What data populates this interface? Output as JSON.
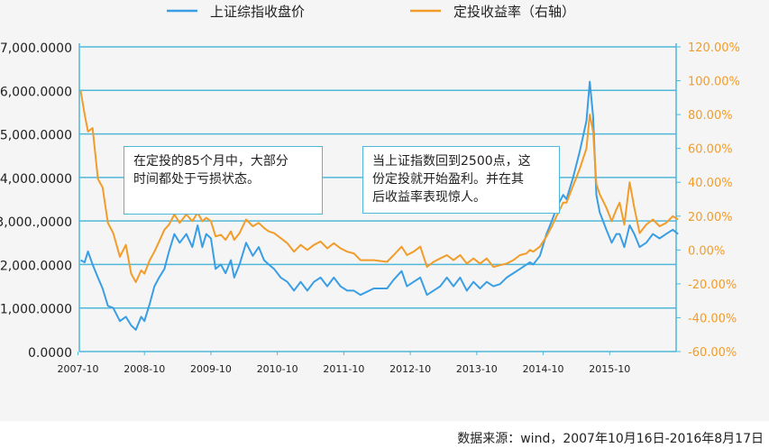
{
  "chart_data": {
    "type": "line",
    "series": [
      {
        "name": "上证综指收盘价",
        "color": "#3a9ee4",
        "axis": "left",
        "points": [
          [
            2007.79,
            2100
          ],
          [
            2007.85,
            2050
          ],
          [
            2007.9,
            2300
          ],
          [
            2007.97,
            2000
          ],
          [
            2008.05,
            1700
          ],
          [
            2008.12,
            1450
          ],
          [
            2008.2,
            1050
          ],
          [
            2008.28,
            1000
          ],
          [
            2008.38,
            700
          ],
          [
            2008.47,
            800
          ],
          [
            2008.55,
            600
          ],
          [
            2008.62,
            500
          ],
          [
            2008.7,
            800
          ],
          [
            2008.75,
            700
          ],
          [
            2008.83,
            1100
          ],
          [
            2008.9,
            1500
          ],
          [
            2008.97,
            1700
          ],
          [
            2009.05,
            1900
          ],
          [
            2009.12,
            2300
          ],
          [
            2009.2,
            2700
          ],
          [
            2009.28,
            2500
          ],
          [
            2009.38,
            2700
          ],
          [
            2009.47,
            2400
          ],
          [
            2009.55,
            2900
          ],
          [
            2009.62,
            2400
          ],
          [
            2009.68,
            2700
          ],
          [
            2009.75,
            2600
          ],
          [
            2009.82,
            1900
          ],
          [
            2009.9,
            2000
          ],
          [
            2009.97,
            1800
          ],
          [
            2010.05,
            2100
          ],
          [
            2010.1,
            1700
          ],
          [
            2010.18,
            2000
          ],
          [
            2010.28,
            2500
          ],
          [
            2010.38,
            2200
          ],
          [
            2010.47,
            2400
          ],
          [
            2010.55,
            2100
          ],
          [
            2010.62,
            2000
          ],
          [
            2010.7,
            1900
          ],
          [
            2010.8,
            1700
          ],
          [
            2010.9,
            1600
          ],
          [
            2011.0,
            1400
          ],
          [
            2011.1,
            1600
          ],
          [
            2011.2,
            1400
          ],
          [
            2011.3,
            1600
          ],
          [
            2011.4,
            1700
          ],
          [
            2011.5,
            1500
          ],
          [
            2011.6,
            1700
          ],
          [
            2011.7,
            1500
          ],
          [
            2011.8,
            1400
          ],
          [
            2011.9,
            1400
          ],
          [
            2012.0,
            1300
          ],
          [
            2012.2,
            1450
          ],
          [
            2012.4,
            1450
          ],
          [
            2012.5,
            1650
          ],
          [
            2012.62,
            1850
          ],
          [
            2012.7,
            1500
          ],
          [
            2012.8,
            1600
          ],
          [
            2012.9,
            1700
          ],
          [
            2013.0,
            1300
          ],
          [
            2013.1,
            1400
          ],
          [
            2013.2,
            1500
          ],
          [
            2013.3,
            1700
          ],
          [
            2013.4,
            1500
          ],
          [
            2013.5,
            1700
          ],
          [
            2013.6,
            1400
          ],
          [
            2013.7,
            1600
          ],
          [
            2013.8,
            1450
          ],
          [
            2013.9,
            1600
          ],
          [
            2014.0,
            1500
          ],
          [
            2014.1,
            1550
          ],
          [
            2014.2,
            1700
          ],
          [
            2014.3,
            1800
          ],
          [
            2014.4,
            1900
          ],
          [
            2014.5,
            2000
          ],
          [
            2014.55,
            2050
          ],
          [
            2014.6,
            2000
          ],
          [
            2014.7,
            2200
          ],
          [
            2014.8,
            2700
          ],
          [
            2014.88,
            3000
          ],
          [
            2014.95,
            3300
          ],
          [
            2015.05,
            3600
          ],
          [
            2015.1,
            3500
          ],
          [
            2015.2,
            4000
          ],
          [
            2015.3,
            4600
          ],
          [
            2015.4,
            5300
          ],
          [
            2015.45,
            6200
          ],
          [
            2015.5,
            5400
          ],
          [
            2015.55,
            3600
          ],
          [
            2015.6,
            3200
          ],
          [
            2015.65,
            3000
          ],
          [
            2015.7,
            2800
          ],
          [
            2015.78,
            2500
          ],
          [
            2015.85,
            2700
          ],
          [
            2015.9,
            2700
          ],
          [
            2015.97,
            2400
          ],
          [
            2016.05,
            2900
          ],
          [
            2016.12,
            2700
          ],
          [
            2016.2,
            2400
          ],
          [
            2016.3,
            2500
          ],
          [
            2016.4,
            2700
          ],
          [
            2016.5,
            2600
          ],
          [
            2016.6,
            2700
          ],
          [
            2016.7,
            2800
          ],
          [
            2016.78,
            2700
          ]
        ]
      },
      {
        "name": "定投收益率（右轴）",
        "color": "#f29c2a",
        "axis": "right",
        "points": [
          [
            2007.79,
            94
          ],
          [
            2007.85,
            80
          ],
          [
            2007.9,
            70
          ],
          [
            2007.97,
            72
          ],
          [
            2008.05,
            42
          ],
          [
            2008.12,
            37
          ],
          [
            2008.2,
            16
          ],
          [
            2008.28,
            10
          ],
          [
            2008.38,
            -4
          ],
          [
            2008.47,
            3
          ],
          [
            2008.55,
            -14
          ],
          [
            2008.62,
            -19
          ],
          [
            2008.7,
            -12
          ],
          [
            2008.75,
            -14
          ],
          [
            2008.83,
            -6
          ],
          [
            2008.9,
            -1
          ],
          [
            2008.97,
            5
          ],
          [
            2009.05,
            12
          ],
          [
            2009.12,
            15
          ],
          [
            2009.2,
            21
          ],
          [
            2009.28,
            16
          ],
          [
            2009.38,
            21
          ],
          [
            2009.47,
            17
          ],
          [
            2009.55,
            22
          ],
          [
            2009.62,
            17
          ],
          [
            2009.68,
            19
          ],
          [
            2009.75,
            17
          ],
          [
            2009.82,
            8
          ],
          [
            2009.9,
            9
          ],
          [
            2009.97,
            6
          ],
          [
            2010.05,
            11
          ],
          [
            2010.1,
            6
          ],
          [
            2010.18,
            10
          ],
          [
            2010.28,
            18
          ],
          [
            2010.38,
            14
          ],
          [
            2010.47,
            16
          ],
          [
            2010.55,
            13
          ],
          [
            2010.62,
            11
          ],
          [
            2010.7,
            10
          ],
          [
            2010.8,
            7
          ],
          [
            2010.9,
            4
          ],
          [
            2011.0,
            -1
          ],
          [
            2011.1,
            3
          ],
          [
            2011.2,
            0
          ],
          [
            2011.3,
            3
          ],
          [
            2011.4,
            5
          ],
          [
            2011.5,
            1
          ],
          [
            2011.6,
            4
          ],
          [
            2011.7,
            1
          ],
          [
            2011.8,
            -1
          ],
          [
            2011.9,
            -2
          ],
          [
            2012.0,
            -6
          ],
          [
            2012.2,
            -6
          ],
          [
            2012.4,
            -7
          ],
          [
            2012.5,
            -3
          ],
          [
            2012.62,
            2
          ],
          [
            2012.7,
            -3
          ],
          [
            2012.8,
            -1
          ],
          [
            2012.9,
            2
          ],
          [
            2013.0,
            -10
          ],
          [
            2013.1,
            -7
          ],
          [
            2013.2,
            -5
          ],
          [
            2013.3,
            -3
          ],
          [
            2013.4,
            -6
          ],
          [
            2013.5,
            -3
          ],
          [
            2013.6,
            -8
          ],
          [
            2013.7,
            -5
          ],
          [
            2013.8,
            -8
          ],
          [
            2013.9,
            -5
          ],
          [
            2014.0,
            -10
          ],
          [
            2014.1,
            -9
          ],
          [
            2014.2,
            -8
          ],
          [
            2014.3,
            -6
          ],
          [
            2014.4,
            -3
          ],
          [
            2014.5,
            -2
          ],
          [
            2014.55,
            0
          ],
          [
            2014.6,
            -1
          ],
          [
            2014.7,
            2
          ],
          [
            2014.8,
            8
          ],
          [
            2014.88,
            14
          ],
          [
            2014.95,
            20
          ],
          [
            2015.05,
            28
          ],
          [
            2015.1,
            28
          ],
          [
            2015.2,
            38
          ],
          [
            2015.3,
            48
          ],
          [
            2015.4,
            60
          ],
          [
            2015.45,
            80
          ],
          [
            2015.5,
            70
          ],
          [
            2015.55,
            39
          ],
          [
            2015.6,
            33
          ],
          [
            2015.65,
            29
          ],
          [
            2015.7,
            25
          ],
          [
            2015.78,
            17
          ],
          [
            2015.85,
            24
          ],
          [
            2015.9,
            28
          ],
          [
            2015.97,
            15
          ],
          [
            2016.05,
            40
          ],
          [
            2016.12,
            25
          ],
          [
            2016.2,
            10
          ],
          [
            2016.3,
            15
          ],
          [
            2016.4,
            18
          ],
          [
            2016.5,
            14
          ],
          [
            2016.6,
            16
          ],
          [
            2016.7,
            20
          ],
          [
            2016.78,
            18
          ]
        ]
      }
    ],
    "left_axis": {
      "ticks": [
        0,
        1000,
        2000,
        3000,
        4000,
        5000,
        6000,
        7000
      ],
      "tick_labels": [
        "0.0000",
        "1,000.0000",
        "2,000.0000",
        "3,000.,0000",
        "4,000.0000",
        "5,000.0000",
        "6,000.0000",
        "7,000.0000"
      ],
      "ylim": [
        0,
        7000
      ]
    },
    "right_axis": {
      "ticks": [
        -60,
        -40,
        -20,
        0,
        20,
        40,
        60,
        80,
        100,
        120
      ],
      "tick_labels": [
        "-60.00%",
        "-40.00%",
        "-20.00%",
        "0.00%",
        "20.00%",
        "40.00%",
        "60.00%",
        "80.00%",
        "100.00%",
        "120.00%"
      ],
      "ylim": [
        -60,
        120
      ]
    },
    "x_axis": {
      "ticks": [
        2007.75,
        2008.75,
        2009.75,
        2010.75,
        2011.75,
        2012.75,
        2013.75,
        2014.75,
        2015.75
      ],
      "tick_labels": [
        "2007-10",
        "2008-10",
        "2009-10",
        "2010-10",
        "2011-10",
        "2012-10",
        "2013-10",
        "2014-10",
        "2015-10"
      ],
      "xlim": [
        2007.77,
        2016.75
      ]
    },
    "grid": "horizontal",
    "legend": "top",
    "annotations": [
      "在定投的85个月中，大部分\n时间都处于亏损状态。",
      "当上证指数回到2500点，这\n份定投就开始盈利。并在其\n后收益率表现惊人。"
    ]
  },
  "source_note": "数据来源：wind，2007年10月16日-2016年8月17日",
  "colors": {
    "grid": "#4fb8d8",
    "axis": "#4fb8d8",
    "right_tick_text": "#f29c2a"
  }
}
